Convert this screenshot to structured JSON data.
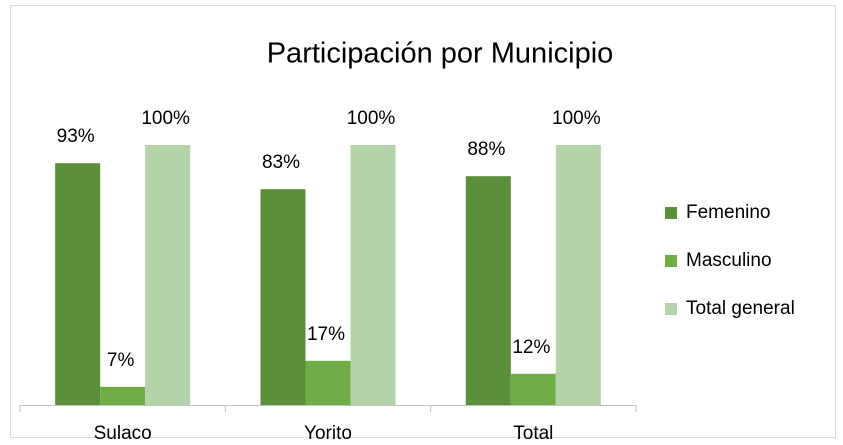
{
  "chart_data": {
    "type": "bar",
    "title": "Participación por Municipio",
    "categories": [
      "Sulaco",
      "Yorito",
      "Total"
    ],
    "series": [
      {
        "name": "Femenino",
        "color": "#5b8f3b",
        "values": [
          93,
          83,
          88
        ],
        "value_labels": [
          "93%",
          "83%",
          "88%"
        ]
      },
      {
        "name": "Masculino",
        "color": "#70ad47",
        "values": [
          7,
          17,
          12
        ],
        "value_labels": [
          "7%",
          "17%",
          "12%"
        ]
      },
      {
        "name": "Total general",
        "color": "#b5d3a8",
        "values": [
          100,
          100,
          100
        ],
        "value_labels": [
          "100%",
          "100%",
          "100%"
        ]
      }
    ],
    "ylim": [
      0,
      100
    ],
    "legend": "right"
  }
}
